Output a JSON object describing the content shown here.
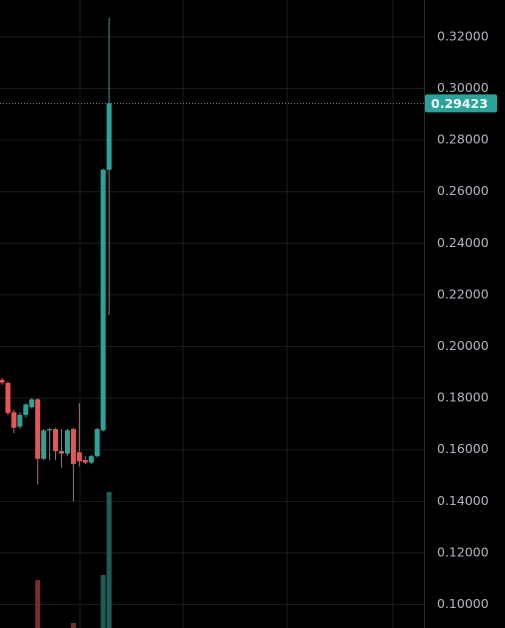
{
  "chart_data": {
    "type": "candlestick",
    "up_color": "#26a69a",
    "down_color": "#ef5350",
    "volume_up_color": "#1d5d56",
    "volume_down_color": "#7c2b2b",
    "open": [
      0.187,
      0.1859,
      0.1745,
      0.169,
      0.1735,
      0.1765,
      0.1795,
      0.1565,
      0.1675,
      0.168,
      0.1595,
      0.1585,
      0.168,
      0.159,
      0.156,
      0.155,
      0.1575,
      0.1675,
      0.2685
    ],
    "high": [
      0.1878,
      0.1865,
      0.1755,
      0.1745,
      0.178,
      0.18,
      0.18,
      0.168,
      0.1685,
      0.1685,
      0.168,
      0.168,
      0.1685,
      0.178,
      0.1575,
      0.158,
      0.1685,
      0.269,
      0.3274
    ],
    "low": [
      0.1852,
      0.1735,
      0.1665,
      0.168,
      0.1725,
      0.176,
      0.1465,
      0.156,
      0.156,
      0.156,
      0.153,
      0.1575,
      0.14,
      0.1535,
      0.1545,
      0.1545,
      0.157,
      0.167,
      0.2122
    ],
    "close": [
      0.186,
      0.1743,
      0.1685,
      0.1735,
      0.1775,
      0.1795,
      0.1565,
      0.1675,
      0.168,
      0.1595,
      0.1585,
      0.1675,
      0.1545,
      0.1555,
      0.155,
      0.1575,
      0.168,
      0.2685,
      0.2942
    ],
    "volume": [
      null,
      null,
      null,
      null,
      null,
      null,
      48,
      null,
      null,
      null,
      null,
      null,
      5,
      null,
      null,
      null,
      null,
      53,
      136
    ],
    "ylim": [
      0.0909,
      0.3343
    ],
    "yticks": [
      {
        "value": 0.1,
        "label": "0.10000"
      },
      {
        "value": 0.12,
        "label": "0.12000"
      },
      {
        "value": 0.14,
        "label": "0.14000"
      },
      {
        "value": 0.16,
        "label": "0.16000"
      },
      {
        "value": 0.18,
        "label": "0.18000"
      },
      {
        "value": 0.2,
        "label": "0.20000"
      },
      {
        "value": 0.22,
        "label": "0.22000"
      },
      {
        "value": 0.24,
        "label": "0.24000"
      },
      {
        "value": 0.26,
        "label": "0.26000"
      },
      {
        "value": 0.28,
        "label": "0.28000"
      },
      {
        "value": 0.3,
        "label": "0.30000"
      },
      {
        "value": 0.32,
        "label": "0.32000"
      }
    ],
    "last_price": 0.29423,
    "grid": true
  }
}
